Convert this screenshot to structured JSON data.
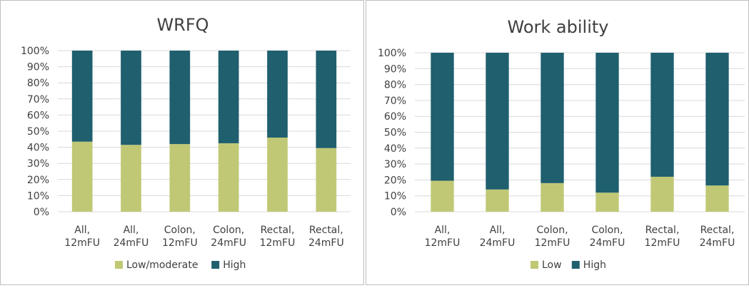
{
  "chart_data": [
    {
      "type": "bar",
      "stacked": true,
      "percent": true,
      "title": "WRFQ",
      "categories": [
        [
          "All,",
          "12mFU"
        ],
        [
          "All,",
          "24mFU"
        ],
        [
          "Colon,",
          "12mFU"
        ],
        [
          "Colon,",
          "24mFU"
        ],
        [
          "Rectal,",
          "12mFU"
        ],
        [
          "Rectal,",
          "24mFU"
        ]
      ],
      "series": [
        {
          "name": "Low/moderate",
          "color": "#c0c875",
          "values": [
            43.5,
            41.5,
            42,
            42.5,
            46,
            39.5
          ]
        },
        {
          "name": "High",
          "color": "#1f5f6e",
          "values": [
            56.5,
            58.5,
            58,
            57.5,
            54,
            60.5
          ]
        }
      ],
      "ylim": [
        0,
        100
      ],
      "yticks": [
        "0%",
        "10%",
        "20%",
        "30%",
        "40%",
        "50%",
        "60%",
        "70%",
        "80%",
        "90%",
        "100%"
      ],
      "grid": true,
      "legend": "bottom"
    },
    {
      "type": "bar",
      "stacked": true,
      "percent": true,
      "title": "Work ability",
      "categories": [
        [
          "All,",
          "12mFU"
        ],
        [
          "All,",
          "24mFU"
        ],
        [
          "Colon,",
          "12mFU"
        ],
        [
          "Colon,",
          "24mFU"
        ],
        [
          "Rectal,",
          "12mFU"
        ],
        [
          "Rectal,",
          "24mFU"
        ]
      ],
      "series": [
        {
          "name": "Low",
          "color": "#c0c875",
          "values": [
            19.5,
            14,
            18,
            12,
            22,
            16.5
          ]
        },
        {
          "name": "High",
          "color": "#1f5f6e",
          "values": [
            80.5,
            86,
            82,
            88,
            78,
            83.5
          ]
        }
      ],
      "ylim": [
        0,
        100
      ],
      "yticks": [
        "0%",
        "10%",
        "20%",
        "30%",
        "40%",
        "50%",
        "60%",
        "70%",
        "80%",
        "90%",
        "100%"
      ],
      "grid": true,
      "legend": "bottom"
    }
  ]
}
